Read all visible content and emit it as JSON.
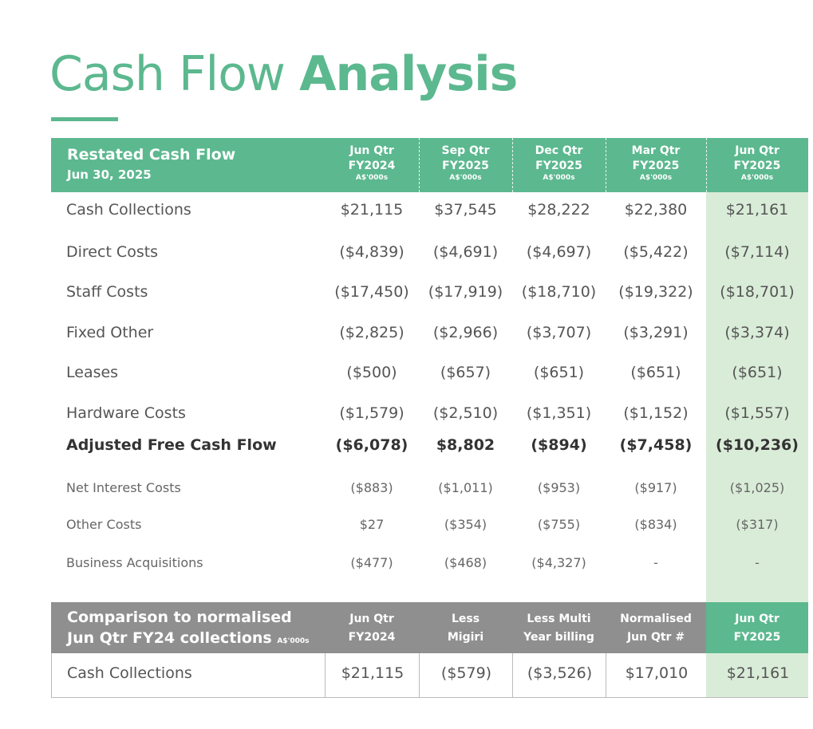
{
  "title": {
    "light": "Cash Flow",
    "bold": "Analysis"
  },
  "header": {
    "title": "Restated Cash Flow",
    "subtitle": "Jun 30, 2025",
    "columns": [
      {
        "l1": "Jun Qtr",
        "l2": "FY2024",
        "l3": "A$'000s"
      },
      {
        "l1": "Sep Qtr",
        "l2": "FY2025",
        "l3": "A$'000s"
      },
      {
        "l1": "Dec Qtr",
        "l2": "FY2025",
        "l3": "A$'000s"
      },
      {
        "l1": "Mar Qtr",
        "l2": "FY2025",
        "l3": "A$'000s"
      },
      {
        "l1": "Jun Qtr",
        "l2": "FY2025",
        "l3": "A$'000s"
      }
    ]
  },
  "rows": [
    {
      "label": "Cash Collections",
      "values": [
        "$21,115",
        "$37,545",
        "$28,222",
        "$22,380",
        "$21,161"
      ]
    },
    {
      "label": "Direct Costs",
      "values": [
        "($4,839)",
        "($4,691)",
        "($4,697)",
        "($5,422)",
        "($7,114)"
      ]
    },
    {
      "label": "Staff Costs",
      "values": [
        "($17,450)",
        "($17,919)",
        "($18,710)",
        "($19,322)",
        "($18,701)"
      ]
    },
    {
      "label": "Fixed Other",
      "values": [
        "($2,825)",
        "($2,966)",
        "($3,707)",
        "($3,291)",
        "($3,374)"
      ]
    },
    {
      "label": "Leases",
      "values": [
        "($500)",
        "($657)",
        "($651)",
        "($651)",
        "($651)"
      ]
    },
    {
      "label": "Hardware Costs",
      "values": [
        "($1,579)",
        "($2,510)",
        "($1,351)",
        "($1,152)",
        "($1,557)"
      ]
    },
    {
      "label": "Adjusted Free Cash Flow",
      "values": [
        "($6,078)",
        "$8,802",
        "($894)",
        "($7,458)",
        "($10,236)"
      ]
    },
    {
      "label": "Net Interest Costs",
      "values": [
        "($883)",
        "($1,011)",
        "($953)",
        "($917)",
        "($1,025)"
      ]
    },
    {
      "label": "Other Costs",
      "values": [
        "$27",
        "($354)",
        "($755)",
        "($834)",
        "($317)"
      ]
    },
    {
      "label": "Business Acquisitions",
      "values": [
        "($477)",
        "($468)",
        "($4,327)",
        "-",
        "-"
      ]
    }
  ],
  "comparison": {
    "title_line1": "Comparison to normalised",
    "title_line2": "Jun Qtr FY24 collections",
    "title_units": "A$'000s",
    "columns": [
      {
        "l1": "Jun Qtr",
        "l2": "FY2024"
      },
      {
        "l1": "Less",
        "l2": "Migiri"
      },
      {
        "l1": "Less Multi",
        "l2": "Year billing"
      },
      {
        "l1": "Normalised",
        "l2": "Jun Qtr #"
      },
      {
        "l1": "Jun Qtr",
        "l2": "FY2025"
      }
    ],
    "row": {
      "label": "Cash Collections",
      "values": [
        "$21,115",
        "($579)",
        "($3,526)",
        "$17,010",
        "$21,161"
      ]
    }
  },
  "colors": {
    "accent": "#5cb88f",
    "highlight": "#d9ecd8",
    "grey_header": "#8f8f8f"
  }
}
